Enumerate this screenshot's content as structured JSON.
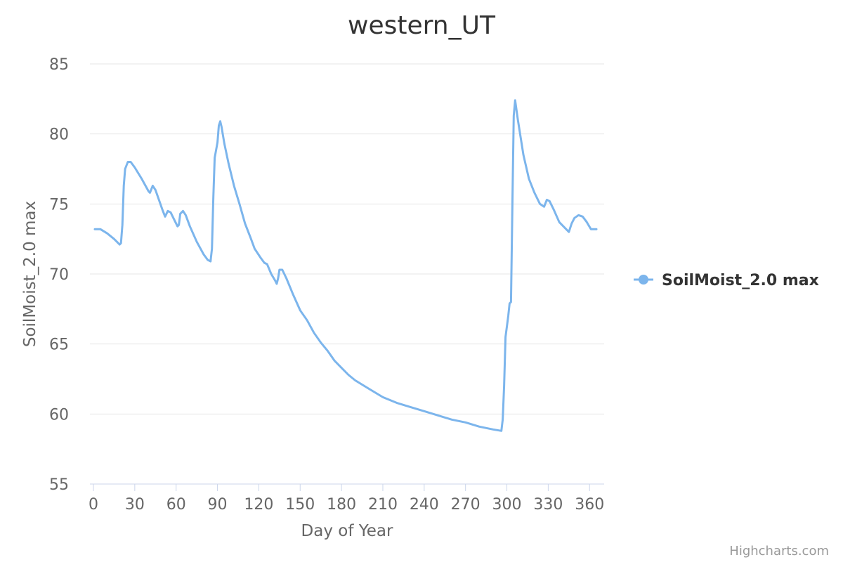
{
  "chart_data": {
    "type": "line",
    "title": "western_UT",
    "xlabel": "Day of Year",
    "ylabel": "SoilMoist_2.0 max",
    "xlim": [
      0,
      366
    ],
    "ylim": [
      55,
      85
    ],
    "x_ticks": [
      0,
      30,
      60,
      90,
      120,
      150,
      180,
      210,
      240,
      270,
      300,
      330,
      360
    ],
    "y_ticks": [
      55,
      60,
      65,
      70,
      75,
      80,
      85
    ],
    "grid": true,
    "legend_position": "right",
    "series": [
      {
        "name": "SoilMoist_2.0 max",
        "color": "#7cb5ec",
        "points": [
          [
            1,
            73.2
          ],
          [
            5,
            73.2
          ],
          [
            10,
            72.9
          ],
          [
            15,
            72.5
          ],
          [
            19,
            72.1
          ],
          [
            20,
            72.2
          ],
          [
            21,
            73.5
          ],
          [
            22,
            76.3
          ],
          [
            23,
            77.5
          ],
          [
            25,
            78.0
          ],
          [
            27,
            78.0
          ],
          [
            30,
            77.6
          ],
          [
            35,
            76.8
          ],
          [
            40,
            75.9
          ],
          [
            41,
            75.8
          ],
          [
            43,
            76.3
          ],
          [
            45,
            76.0
          ],
          [
            50,
            74.6
          ],
          [
            52,
            74.1
          ],
          [
            54,
            74.5
          ],
          [
            56,
            74.4
          ],
          [
            58,
            74.0
          ],
          [
            61,
            73.4
          ],
          [
            62,
            73.5
          ],
          [
            63,
            74.3
          ],
          [
            65,
            74.5
          ],
          [
            67,
            74.2
          ],
          [
            70,
            73.4
          ],
          [
            75,
            72.3
          ],
          [
            80,
            71.4
          ],
          [
            83,
            71.0
          ],
          [
            85,
            70.9
          ],
          [
            86,
            71.8
          ],
          [
            87,
            75.5
          ],
          [
            88,
            78.3
          ],
          [
            90,
            79.4
          ],
          [
            91,
            80.6
          ],
          [
            92,
            80.9
          ],
          [
            93,
            80.5
          ],
          [
            95,
            79.3
          ],
          [
            98,
            77.9
          ],
          [
            102,
            76.3
          ],
          [
            106,
            75.0
          ],
          [
            110,
            73.6
          ],
          [
            114,
            72.6
          ],
          [
            117,
            71.8
          ],
          [
            121,
            71.2
          ],
          [
            124,
            70.8
          ],
          [
            126,
            70.7
          ],
          [
            129,
            70.0
          ],
          [
            132,
            69.5
          ],
          [
            133,
            69.3
          ],
          [
            134,
            69.7
          ],
          [
            135,
            70.3
          ],
          [
            137,
            70.3
          ],
          [
            140,
            69.7
          ],
          [
            145,
            68.5
          ],
          [
            150,
            67.4
          ],
          [
            155,
            66.7
          ],
          [
            160,
            65.8
          ],
          [
            165,
            65.1
          ],
          [
            170,
            64.5
          ],
          [
            175,
            63.8
          ],
          [
            180,
            63.3
          ],
          [
            185,
            62.8
          ],
          [
            190,
            62.4
          ],
          [
            195,
            62.1
          ],
          [
            200,
            61.8
          ],
          [
            210,
            61.2
          ],
          [
            220,
            60.8
          ],
          [
            230,
            60.5
          ],
          [
            240,
            60.2
          ],
          [
            250,
            59.9
          ],
          [
            260,
            59.6
          ],
          [
            270,
            59.4
          ],
          [
            280,
            59.1
          ],
          [
            290,
            58.9
          ],
          [
            296,
            58.8
          ],
          [
            297,
            59.6
          ],
          [
            298,
            62.0
          ],
          [
            299,
            65.5
          ],
          [
            301,
            67.0
          ],
          [
            302,
            67.9
          ],
          [
            303,
            68.0
          ],
          [
            304,
            75.0
          ],
          [
            305,
            81.3
          ],
          [
            306,
            82.4
          ],
          [
            308,
            81.0
          ],
          [
            312,
            78.5
          ],
          [
            316,
            76.8
          ],
          [
            320,
            75.8
          ],
          [
            324,
            75.0
          ],
          [
            327,
            74.8
          ],
          [
            329,
            75.3
          ],
          [
            331,
            75.2
          ],
          [
            334,
            74.6
          ],
          [
            338,
            73.7
          ],
          [
            342,
            73.3
          ],
          [
            345,
            73.0
          ],
          [
            347,
            73.6
          ],
          [
            349,
            74.0
          ],
          [
            352,
            74.2
          ],
          [
            355,
            74.1
          ],
          [
            358,
            73.7
          ],
          [
            361,
            73.2
          ],
          [
            365,
            73.2
          ]
        ]
      }
    ]
  },
  "credits": "Highcharts.com"
}
